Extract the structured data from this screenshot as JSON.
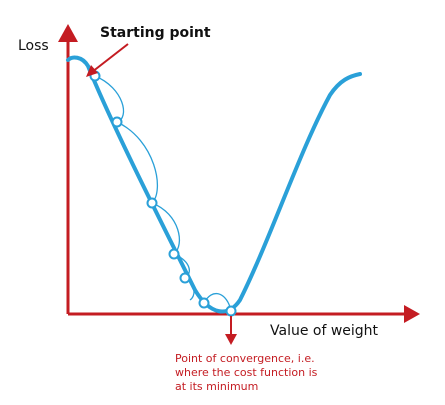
{
  "labels": {
    "y_axis": "Loss",
    "x_axis": "Value of weight",
    "start": "Starting point",
    "convergence_lines": [
      "Point of convergence, i.e.",
      "where the cost function is",
      "at its minimum"
    ]
  },
  "colors": {
    "axis": "#c41c22",
    "curve": "#2aa0d8",
    "point_fill": "#ffffff",
    "text": "#111111",
    "note": "#c41c22"
  }
}
